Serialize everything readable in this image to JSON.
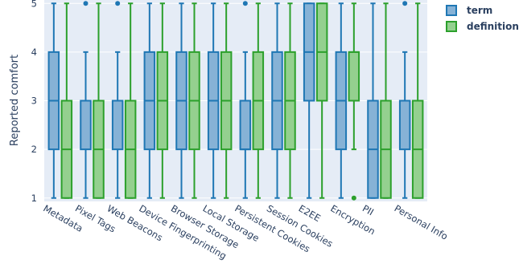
{
  "chart_data": {
    "type": "box",
    "ylabel": "Reported comfort",
    "ylim": [
      0.93,
      5.07
    ],
    "yticks": [
      1,
      2,
      3,
      4,
      5
    ],
    "categories": [
      "Metadata",
      "Pixel Tags",
      "Web Beacons",
      "Device Fingerprinting",
      "Browser Storage",
      "Local Storage",
      "Persistent Cookies",
      "Session Cookies",
      "E2EE",
      "Encryption",
      "PII",
      "Personal Info"
    ],
    "legend_position": "top-right",
    "grid": true,
    "series": [
      {
        "name": "term",
        "color": "#1f77b4",
        "fill": "#86b2d6",
        "boxes": [
          {
            "min": 1,
            "q1": 2,
            "median": 3,
            "q3": 4,
            "max": 5,
            "outliers": []
          },
          {
            "min": 1,
            "q1": 2,
            "median": 3,
            "q3": 3,
            "max": 4,
            "outliers": [
              5
            ]
          },
          {
            "min": 1,
            "q1": 2,
            "median": 3,
            "q3": 3,
            "max": 4,
            "outliers": [
              5
            ]
          },
          {
            "min": 1,
            "q1": 2,
            "median": 3,
            "q3": 4,
            "max": 5,
            "outliers": []
          },
          {
            "min": 1,
            "q1": 2,
            "median": 3,
            "q3": 4,
            "max": 5,
            "outliers": []
          },
          {
            "min": 1,
            "q1": 2,
            "median": 3,
            "q3": 4,
            "max": 5,
            "outliers": []
          },
          {
            "min": 1,
            "q1": 2,
            "median": 2,
            "q3": 3,
            "max": 4,
            "outliers": [
              5
            ]
          },
          {
            "min": 1,
            "q1": 2,
            "median": 3,
            "q3": 4,
            "max": 5,
            "outliers": []
          },
          {
            "min": 1,
            "q1": 3,
            "median": 4,
            "q3": 5,
            "max": 5,
            "outliers": []
          },
          {
            "min": 1,
            "q1": 2,
            "median": 3,
            "q3": 4,
            "max": 5,
            "outliers": []
          },
          {
            "min": 1,
            "q1": 1,
            "median": 2,
            "q3": 3,
            "max": 5,
            "outliers": []
          },
          {
            "min": 1,
            "q1": 2,
            "median": 3,
            "q3": 3,
            "max": 4,
            "outliers": [
              5
            ]
          }
        ]
      },
      {
        "name": "definition",
        "color": "#2ca02c",
        "fill": "#94d08f",
        "boxes": [
          {
            "min": 1,
            "q1": 1,
            "median": 2,
            "q3": 3,
            "max": 5,
            "outliers": []
          },
          {
            "min": 1,
            "q1": 1,
            "median": 2,
            "q3": 3,
            "max": 5,
            "outliers": []
          },
          {
            "min": 1,
            "q1": 1,
            "median": 2,
            "q3": 3,
            "max": 5,
            "outliers": []
          },
          {
            "min": 1,
            "q1": 2,
            "median": 3,
            "q3": 4,
            "max": 5,
            "outliers": []
          },
          {
            "min": 1,
            "q1": 2,
            "median": 3,
            "q3": 4,
            "max": 5,
            "outliers": []
          },
          {
            "min": 1,
            "q1": 2,
            "median": 3,
            "q3": 4,
            "max": 5,
            "outliers": []
          },
          {
            "min": 1,
            "q1": 2,
            "median": 3,
            "q3": 4,
            "max": 5,
            "outliers": []
          },
          {
            "min": 1,
            "q1": 2,
            "median": 3,
            "q3": 4,
            "max": 5,
            "outliers": []
          },
          {
            "min": 1,
            "q1": 3,
            "median": 4,
            "q3": 5,
            "max": 5,
            "outliers": []
          },
          {
            "min": 2,
            "q1": 3,
            "median": 4,
            "q3": 4,
            "max": 5,
            "outliers": [
              1
            ]
          },
          {
            "min": 1,
            "q1": 1,
            "median": 2,
            "q3": 3,
            "max": 5,
            "outliers": []
          },
          {
            "min": 1,
            "q1": 1,
            "median": 2,
            "q3": 3,
            "max": 5,
            "outliers": []
          }
        ]
      }
    ]
  }
}
